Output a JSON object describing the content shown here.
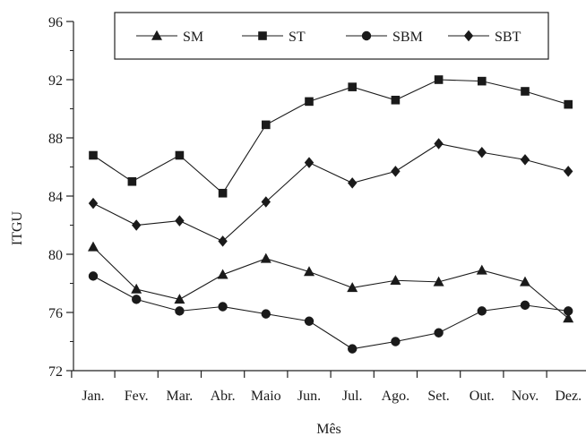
{
  "chart_data": {
    "type": "line",
    "xlabel": "Mês",
    "ylabel": "ITGU",
    "categories": [
      "Jan.",
      "Fev.",
      "Mar.",
      "Abr.",
      "Maio",
      "Jun.",
      "Jul.",
      "Ago.",
      "Set.",
      "Out.",
      "Nov.",
      "Dez."
    ],
    "ylim": [
      72,
      96
    ],
    "yticks": [
      72,
      76,
      80,
      84,
      88,
      92,
      96
    ],
    "grid": false,
    "legend_position": "top",
    "series": [
      {
        "name": "SM",
        "marker": "triangle",
        "x": [
          0,
          1,
          2,
          3,
          4,
          5,
          6,
          7,
          8,
          9,
          10,
          11
        ],
        "values": [
          80.5,
          77.6,
          76.9,
          78.6,
          79.7,
          78.8,
          77.7,
          78.2,
          78.1,
          78.9,
          78.1,
          75.6
        ]
      },
      {
        "name": "ST",
        "marker": "square",
        "x": [
          0,
          0.9,
          2,
          3,
          4,
          5,
          6,
          7,
          8,
          9,
          10,
          11
        ],
        "values": [
          86.8,
          85.0,
          86.8,
          84.2,
          88.9,
          90.5,
          91.5,
          90.6,
          92.0,
          91.9,
          91.2,
          90.3
        ]
      },
      {
        "name": "SBM",
        "marker": "circle",
        "x": [
          0,
          1,
          2,
          3,
          4,
          5,
          6,
          7,
          8,
          9,
          10,
          11
        ],
        "values": [
          78.5,
          76.9,
          76.1,
          76.4,
          75.9,
          75.4,
          73.5,
          74.0,
          74.6,
          76.1,
          76.5,
          76.1
        ]
      },
      {
        "name": "SBT",
        "marker": "diamond",
        "x": [
          0,
          1,
          2,
          3,
          4,
          5,
          6,
          7,
          8,
          9,
          10,
          11
        ],
        "values": [
          83.5,
          82.0,
          82.3,
          80.9,
          83.6,
          86.3,
          84.9,
          85.7,
          87.6,
          87.0,
          86.5,
          85.7
        ]
      }
    ]
  }
}
